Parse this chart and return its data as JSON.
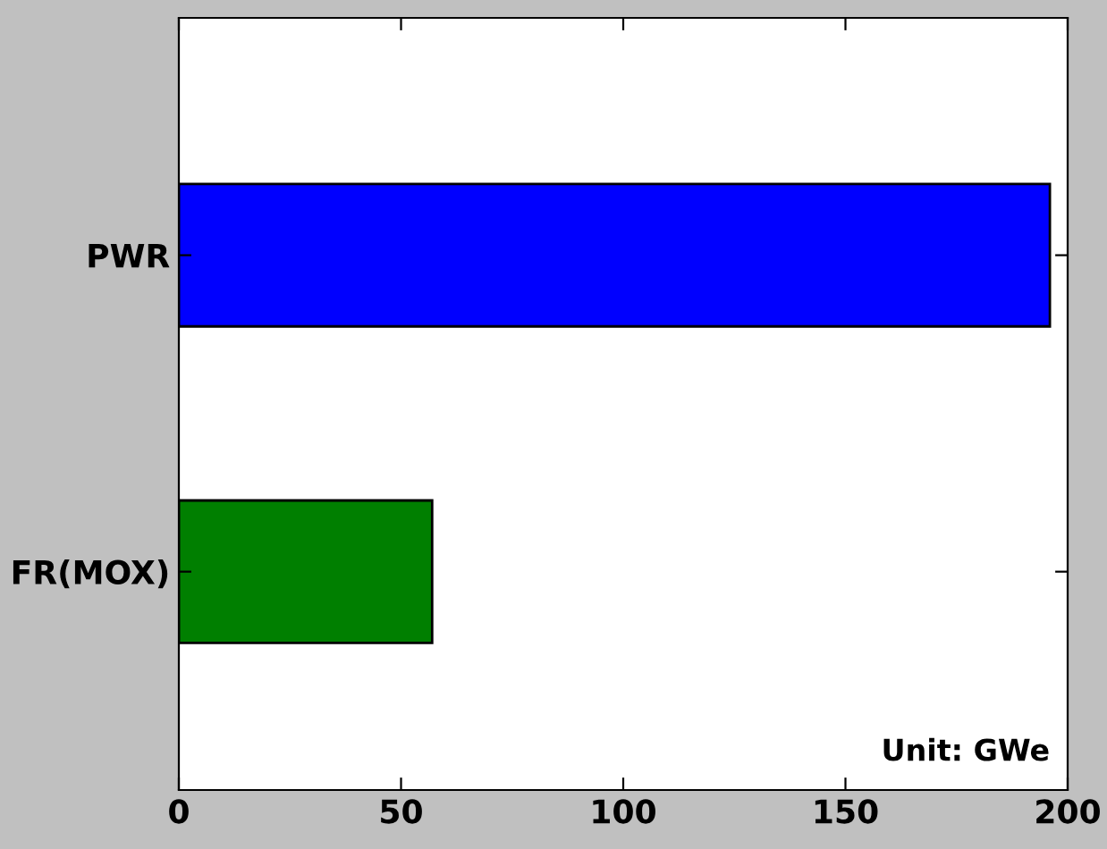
{
  "chart_data": {
    "type": "bar",
    "orientation": "horizontal",
    "categories": [
      "PWR",
      "FR(MOX)"
    ],
    "series": [
      {
        "values": [
          196,
          57
        ],
        "colors": [
          "#0000ff",
          "#007f00"
        ]
      }
    ],
    "xlim": [
      0,
      200
    ],
    "xticks": [
      0,
      50,
      100,
      150,
      200
    ],
    "annotations": [
      "Unit: GWe"
    ],
    "grid": false,
    "legend": false
  }
}
